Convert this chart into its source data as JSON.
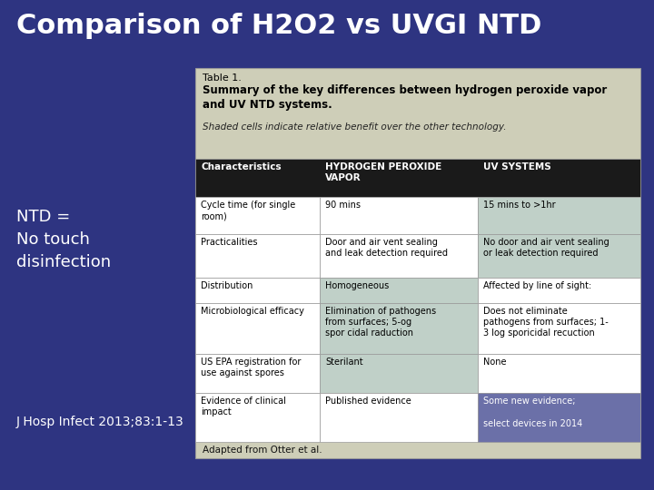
{
  "title": "Comparison of H2O2 vs UVGI NTD",
  "title_color": "#FFFFFF",
  "bg_color": "#2E3481",
  "table_bg": "#CECEB8",
  "header_bg": "#1A1A1A",
  "header_text_color": "#FFFFFF",
  "row_bg_light": "#FFFFFF",
  "row_bg_shaded": "#C0D0C8",
  "highlight_bg": "#6B70A8",
  "highlight_text": "#FFFFFF",
  "table_title": "Table 1.",
  "table_subtitle": "Summary of the key differences between hydrogen peroxide vapor\nand UV NTD systems.",
  "table_note": "Shaded cells indicate relative benefit over the other technology.",
  "adapted_text": "Adapted from Otter et al.",
  "left_text1": "NTD =\nNo touch\ndisinfection",
  "left_text2": "J Hosp Infect 2013;83:1-13",
  "columns": [
    "Characteristics",
    "HYDROGEN PEROXIDE\nVAPOR",
    "UV SYSTEMS"
  ],
  "rows": [
    [
      "Cycle time (for single\nroom)",
      "90 mins",
      "15 mins to >1hr"
    ],
    [
      "Practicalities",
      "Door and air vent sealing\nand leak detection required",
      "No door and air vent sealing\nor leak detection required"
    ],
    [
      "Distribution",
      "Homogeneous",
      "Affected by line of sight:"
    ],
    [
      "Microbiological efficacy",
      "Elimination of pathogens\nfrom surfaces; 5-og\nspor cidal raduction",
      "Does not eliminate\npathogens from surfaces; 1-\n3 log sporicidal recuction"
    ],
    [
      "US EPA registration for\nuse against spores",
      "Sterilant",
      "None"
    ],
    [
      "Evidence of clinical\nimpact",
      "Published evidence",
      "Some new evidence;\n\nselect devices in 2014"
    ]
  ],
  "shading": [
    [
      false,
      false,
      true
    ],
    [
      false,
      false,
      true
    ],
    [
      false,
      true,
      false
    ],
    [
      false,
      true,
      false
    ],
    [
      false,
      true,
      false
    ],
    [
      false,
      false,
      false
    ]
  ],
  "last_row_highlight_col": 2
}
